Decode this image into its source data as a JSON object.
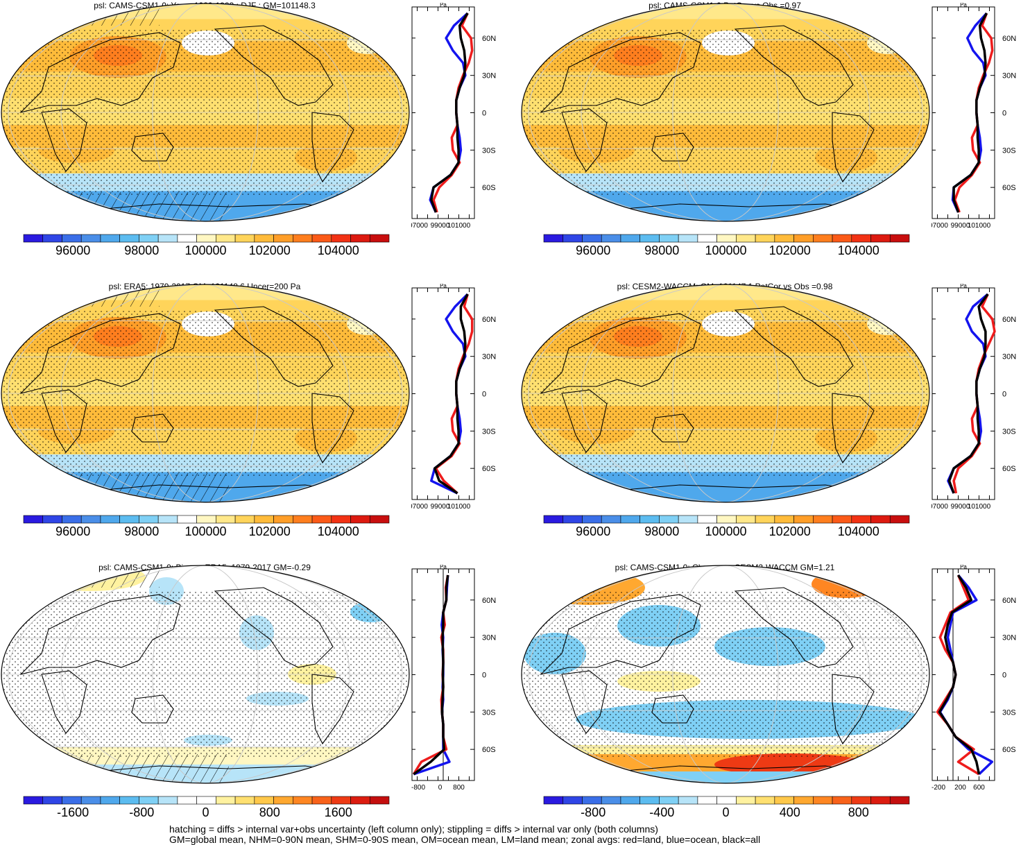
{
  "footer": {
    "line1": "hatching = diffs > internal var+obs uncertainty (left column only); stippling = diffs > internal var only (both columns)",
    "line2": "GM=global mean, NHM=0-90N mean, SHM=0-90S mean, OM=ocean mean, LM=land mean; zonal avgs: red=land, blue=ocean, black=all"
  },
  "colors": {
    "land": "#ee1c1c",
    "ocean": "#1414ee",
    "all": "#000000"
  },
  "panels": [
    {
      "title": "psl: CAMS-CSM1-0: Years 1980-1999 : DJF : GM=101148.3",
      "kind": "abs",
      "hatch": true,
      "colorbar_labels": [
        "96000",
        "98000",
        "100000",
        "102000",
        "104000"
      ],
      "zonal_unit": "Pa",
      "zonal_xticks": [
        "97000",
        "99000",
        "101000"
      ],
      "zonal_lat_ticks": [
        "60N",
        "30N",
        "0",
        "30S",
        "60S"
      ]
    },
    {
      "title": "psl: CAMS-CSM1-0 PatCor vs Obs =0.97",
      "kind": "abs",
      "hatch": false,
      "colorbar_labels": [
        "96000",
        "98000",
        "100000",
        "102000",
        "104000"
      ],
      "zonal_unit": "Pa",
      "zonal_xticks": [
        "97000",
        "99000",
        "101000"
      ],
      "zonal_lat_ticks": [
        "60N",
        "30N",
        "0",
        "30S",
        "60S"
      ]
    },
    {
      "title": "psl: ERA5: 1979-2017 GM=101148.6 Uncer=200 Pa",
      "kind": "abs",
      "hatch": true,
      "colorbar_labels": [
        "96000",
        "98000",
        "100000",
        "102000",
        "104000"
      ],
      "zonal_unit": "Pa",
      "zonal_xticks": [
        "97000",
        "99000",
        "101000"
      ],
      "zonal_lat_ticks": [
        "60N",
        "30N",
        "0",
        "30S",
        "60S"
      ]
    },
    {
      "title": "psl: CESM2-WACCM: GM=101147.1 PatCor vs Obs =0.98",
      "kind": "abs",
      "hatch": false,
      "colorbar_labels": [
        "96000",
        "98000",
        "100000",
        "102000",
        "104000"
      ],
      "zonal_unit": "Pa",
      "zonal_xticks": [
        "97000",
        "99000",
        "101000"
      ],
      "zonal_lat_ticks": [
        "60N",
        "30N",
        "0",
        "30S",
        "60S"
      ]
    },
    {
      "title": "psl: CAMS-CSM1-0: Bias vs ERA5: 1979-2017 GM=-0.29",
      "kind": "bias",
      "hatch": true,
      "colorbar_labels": [
        "-1600",
        "-800",
        "0",
        "800",
        "1600"
      ],
      "zonal_unit": "Pa",
      "zonal_xticks": [
        "-800",
        "0",
        "800"
      ],
      "zonal_lat_ticks": [
        "60N",
        "30N",
        "0",
        "30S",
        "60S"
      ]
    },
    {
      "title": "psl: CAMS-CSM1-0: Change vs CESM2-WACCM GM=1.21",
      "kind": "change",
      "hatch": false,
      "colorbar_labels": [
        "-800",
        "-400",
        "0",
        "400",
        "800"
      ],
      "zonal_unit": "Pa",
      "zonal_xticks": [
        "-200",
        "200",
        "600"
      ],
      "zonal_lat_ticks": [
        "60N",
        "30N",
        "0",
        "30S",
        "60S"
      ]
    }
  ],
  "chart_data": [
    {
      "type": "heatmap",
      "title": "psl: CAMS-CSM1-0: Years 1980-1999 : DJF : GM=101148.3",
      "colorbar": {
        "min": 94500,
        "max": 105500,
        "labels": [
          96000,
          98000,
          100000,
          102000,
          104000
        ]
      },
      "zonal_mean": {
        "x_range": [
          97000,
          102500
        ],
        "lat": [
          80,
          70,
          60,
          50,
          40,
          30,
          20,
          10,
          0,
          -10,
          -20,
          -30,
          -40,
          -50,
          -60,
          -70,
          -80
        ],
        "land": [
          101900,
          101400,
          102200,
          102300,
          102000,
          101500,
          101100,
          100900,
          100900,
          101000,
          100500,
          100600,
          101200,
          100500,
          99400,
          98900,
          99200
        ],
        "ocean": [
          101900,
          100700,
          100000,
          100600,
          101500,
          101700,
          101200,
          100900,
          100900,
          101000,
          101200,
          101300,
          101100,
          100400,
          98900,
          98600,
          99100
        ],
        "all": [
          101900,
          101200,
          101300,
          101600,
          101700,
          101600,
          101200,
          100900,
          100900,
          101000,
          101000,
          101100,
          101100,
          100400,
          98900,
          98700,
          99100
        ]
      }
    },
    {
      "type": "heatmap",
      "title": "psl: CAMS-CSM1-0 PatCor vs Obs =0.97",
      "colorbar": {
        "min": 94500,
        "max": 105500,
        "labels": [
          96000,
          98000,
          100000,
          102000,
          104000
        ]
      },
      "zonal_mean": {
        "x_range": [
          97000,
          102500
        ],
        "lat": [
          80,
          70,
          60,
          50,
          40,
          30,
          20,
          10,
          0,
          -10,
          -20,
          -30,
          -40,
          -50,
          -60,
          -70,
          -80
        ],
        "land": [
          101800,
          101400,
          102200,
          102300,
          102000,
          101500,
          101100,
          100900,
          100900,
          101000,
          100500,
          100600,
          101200,
          100500,
          99400,
          99000,
          99400
        ],
        "ocean": [
          101800,
          100800,
          100100,
          100600,
          101500,
          101700,
          101200,
          100900,
          100900,
          101000,
          101200,
          101300,
          101100,
          100400,
          98900,
          98800,
          99300
        ],
        "all": [
          101800,
          101200,
          101300,
          101600,
          101700,
          101600,
          101200,
          100900,
          100900,
          101000,
          101000,
          101100,
          101100,
          100400,
          98900,
          98900,
          99300
        ]
      }
    },
    {
      "type": "heatmap",
      "title": "psl: ERA5: 1979-2017 GM=101148.6 Uncer=200 Pa",
      "colorbar": {
        "min": 94500,
        "max": 105500,
        "labels": [
          96000,
          98000,
          100000,
          102000,
          104000
        ]
      },
      "zonal_mean": {
        "x_range": [
          97000,
          102500
        ],
        "lat": [
          80,
          70,
          60,
          50,
          40,
          30,
          20,
          10,
          0,
          -10,
          -20,
          -30,
          -40,
          -50,
          -60,
          -70,
          -80
        ],
        "land": [
          101900,
          101600,
          102300,
          102300,
          102000,
          101500,
          101100,
          100900,
          100900,
          101000,
          100500,
          100600,
          101200,
          100500,
          99100,
          99800,
          101000
        ],
        "ocean": [
          101900,
          100800,
          100000,
          100600,
          101500,
          101700,
          101200,
          100900,
          100900,
          101000,
          101200,
          101300,
          101100,
          100400,
          99000,
          98700,
          101000
        ],
        "all": [
          101900,
          101300,
          101300,
          101600,
          101700,
          101600,
          101200,
          100900,
          100900,
          101000,
          101000,
          101100,
          101100,
          100400,
          99000,
          99400,
          101000
        ]
      }
    },
    {
      "type": "heatmap",
      "title": "psl: CESM2-WACCM: GM=101147.1 PatCor vs Obs =0.98",
      "colorbar": {
        "min": 94500,
        "max": 105500,
        "labels": [
          96000,
          98000,
          100000,
          102000,
          104000
        ]
      },
      "zonal_mean": {
        "x_range": [
          97000,
          102500
        ],
        "lat": [
          80,
          70,
          60,
          50,
          40,
          30,
          20,
          10,
          0,
          -10,
          -20,
          -30,
          -40,
          -50,
          -60,
          -70,
          -80
        ],
        "land": [
          101900,
          101400,
          102300,
          102500,
          102000,
          101500,
          101100,
          100900,
          100900,
          101000,
          100500,
          100600,
          101200,
          100500,
          99300,
          98900,
          99100
        ],
        "ocean": [
          101900,
          100600,
          100000,
          100500,
          101500,
          101700,
          101200,
          100900,
          100900,
          101000,
          101200,
          101300,
          101100,
          100400,
          98900,
          98400,
          98900
        ],
        "all": [
          101900,
          101100,
          101300,
          101700,
          101700,
          101600,
          101200,
          100900,
          100900,
          101000,
          101000,
          101100,
          101100,
          100400,
          98900,
          98500,
          98900
        ]
      }
    },
    {
      "type": "heatmap",
      "title": "psl: CAMS-CSM1-0: Bias vs ERA5: 1979-2017 GM=-0.29",
      "colorbar": {
        "min": -2200,
        "max": 2200,
        "labels": [
          -1600,
          -800,
          0,
          800,
          1600
        ]
      },
      "zonal_mean": {
        "x_range": [
          -1000,
          1000
        ],
        "lat": [
          80,
          70,
          60,
          50,
          40,
          30,
          20,
          10,
          0,
          -10,
          -20,
          -30,
          -40,
          -50,
          -60,
          -70,
          -80
        ],
        "land": [
          150,
          80,
          100,
          0,
          50,
          -60,
          0,
          0,
          -20,
          0,
          -60,
          -40,
          0,
          0,
          100,
          -700,
          -950
        ],
        "ocean": [
          150,
          120,
          100,
          0,
          -50,
          0,
          -20,
          0,
          0,
          -20,
          0,
          -40,
          0,
          0,
          0,
          200,
          -950
        ],
        "all": [
          150,
          100,
          100,
          0,
          0,
          -20,
          -10,
          0,
          -10,
          0,
          -20,
          -40,
          0,
          0,
          30,
          -400,
          -950
        ]
      }
    },
    {
      "type": "heatmap",
      "title": "psl: CAMS-CSM1-0: Change vs CESM2-WACCM GM=1.21",
      "colorbar": {
        "min": -1100,
        "max": 1100,
        "labels": [
          -800,
          -400,
          0,
          400,
          800
        ]
      },
      "zonal_mean": {
        "x_range": [
          -400,
          800
        ],
        "lat": [
          80,
          70,
          60,
          50,
          40,
          30,
          20,
          10,
          0,
          -10,
          -20,
          -30,
          -40,
          -50,
          -60,
          -70,
          -80
        ],
        "land": [
          100,
          200,
          300,
          -50,
          -150,
          -250,
          -150,
          0,
          50,
          0,
          -150,
          -300,
          -100,
          50,
          400,
          100,
          500
        ],
        "ocean": [
          100,
          300,
          450,
          0,
          -50,
          -100,
          -50,
          0,
          50,
          0,
          -100,
          -250,
          -100,
          50,
          300,
          750,
          500
        ],
        "all": [
          100,
          250,
          350,
          -20,
          -100,
          -150,
          -100,
          0,
          50,
          0,
          -120,
          -260,
          -100,
          50,
          350,
          450,
          500
        ]
      }
    }
  ]
}
